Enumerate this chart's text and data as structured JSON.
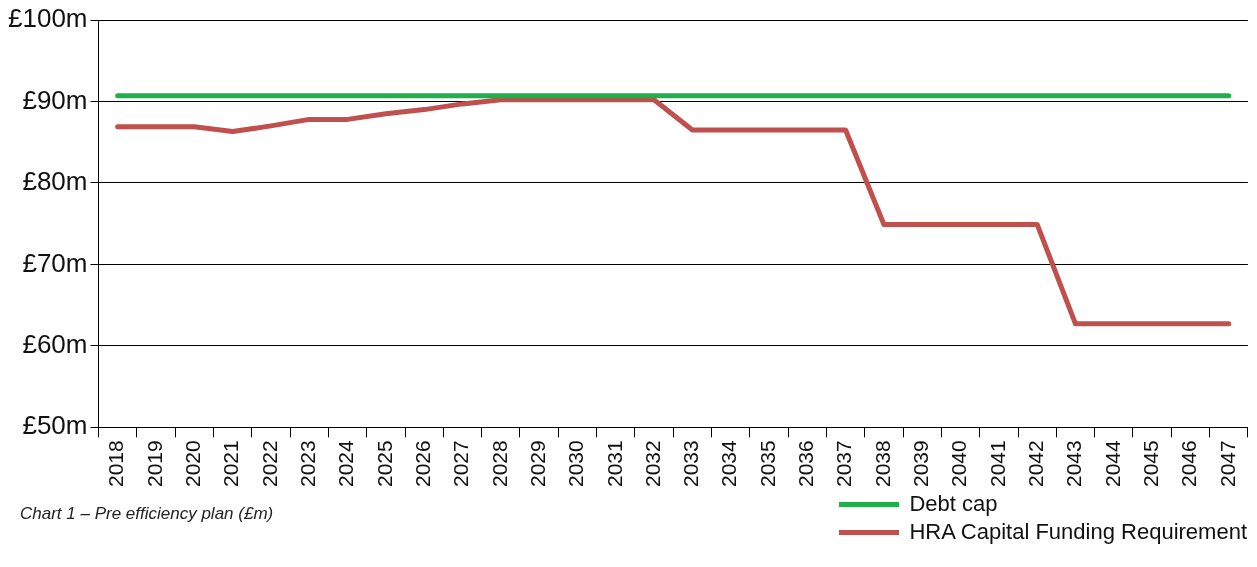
{
  "chart_data": {
    "type": "line",
    "categories": [
      "2018",
      "2019",
      "2020",
      "2021",
      "2022",
      "2023",
      "2024",
      "2025",
      "2026",
      "2027",
      "2028",
      "2029",
      "2030",
      "2031",
      "2032",
      "2033",
      "2034",
      "2035",
      "2036",
      "2037",
      "2038",
      "2039",
      "2040",
      "2041",
      "2042",
      "2043",
      "2044",
      "2045",
      "2046",
      "2047"
    ],
    "series": [
      {
        "name": "Debt cap",
        "color": "#1fb04b",
        "values": [
          90.7,
          90.7,
          90.7,
          90.7,
          90.7,
          90.7,
          90.7,
          90.7,
          90.7,
          90.7,
          90.7,
          90.7,
          90.7,
          90.7,
          90.7,
          90.7,
          90.7,
          90.7,
          90.7,
          90.7,
          90.7,
          90.7,
          90.7,
          90.7,
          90.7,
          90.7,
          90.7,
          90.7,
          90.7,
          90.7
        ]
      },
      {
        "name": "HRA Capital Funding Requirement",
        "color": "#c0504d",
        "values": [
          86.9,
          86.9,
          86.9,
          86.3,
          87.0,
          87.8,
          87.8,
          88.5,
          89.0,
          89.7,
          90.2,
          90.2,
          90.2,
          90.2,
          90.2,
          86.5,
          86.5,
          86.5,
          86.5,
          86.5,
          74.9,
          74.9,
          74.9,
          74.9,
          74.9,
          62.7,
          62.7,
          62.7,
          62.7,
          62.7
        ]
      }
    ],
    "ylim": [
      50,
      100
    ],
    "yticks": [
      {
        "value": 50,
        "label": "£50m"
      },
      {
        "value": 60,
        "label": "£60m"
      },
      {
        "value": 70,
        "label": "£70m"
      },
      {
        "value": 80,
        "label": "£80m"
      },
      {
        "value": 90,
        "label": "£90m"
      },
      {
        "value": 100,
        "label": "£100m"
      }
    ],
    "grid": "y",
    "legend": "bottom right",
    "marker": "none",
    "line_style": "solid",
    "annotations": [
      "Chart 1 – Pre efficiency plan (£m)"
    ]
  }
}
